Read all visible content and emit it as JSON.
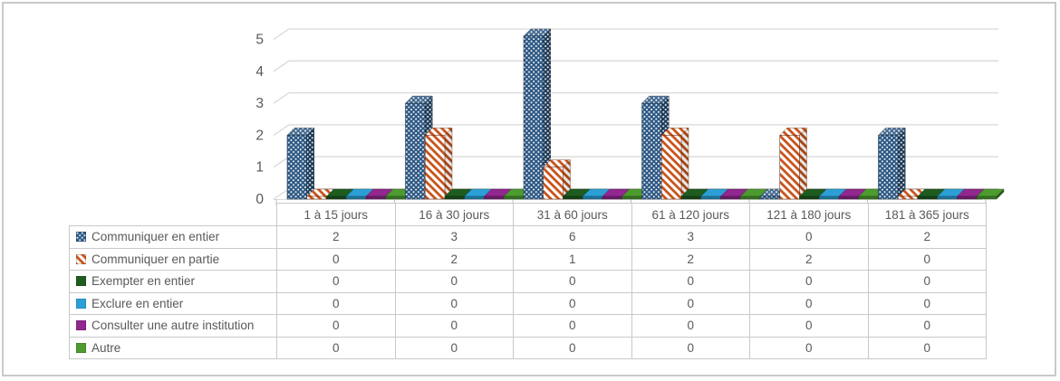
{
  "window": {
    "background": "#FFFFFF",
    "frame_border_color": "#C9C9C9"
  },
  "chart_data": {
    "type": "bar",
    "projection": "3d-column",
    "title": "",
    "xlabel": "",
    "ylabel": "",
    "categories": [
      "1 à 15 jours",
      "16 à 30 jours",
      "31 à 60 jours",
      "61 à 120 jours",
      "121 à 180 jours",
      "181 à 365 jours"
    ],
    "series": [
      {
        "name": "Communiquer en entier",
        "values": [
          2,
          3,
          6,
          3,
          0,
          2
        ],
        "color": "#2E5984",
        "pattern": "dots",
        "pattern_color": "#FFFFFF"
      },
      {
        "name": "Communiquer en partie",
        "values": [
          0,
          2,
          1,
          2,
          2,
          0
        ],
        "color": "#C8521A",
        "pattern": "diagonal-stripes",
        "pattern_color": "#FFFFFF"
      },
      {
        "name": "Exempter en entier",
        "values": [
          0,
          0,
          0,
          0,
          0,
          0
        ],
        "color": "#1E5C20",
        "pattern": "solid"
      },
      {
        "name": "Exclure en entier",
        "values": [
          0,
          0,
          0,
          0,
          0,
          0
        ],
        "color": "#2B9FD6",
        "pattern": "solid"
      },
      {
        "name": "Consulter une autre institution",
        "values": [
          0,
          0,
          0,
          0,
          0,
          0
        ],
        "color": "#92278F",
        "pattern": "solid"
      },
      {
        "name": "Autre",
        "values": [
          0,
          0,
          0,
          0,
          0,
          0
        ],
        "color": "#4D9B2F",
        "pattern": "solid"
      }
    ],
    "y_ticks": [
      0,
      1,
      2,
      3,
      4,
      5
    ],
    "ylim": [
      0,
      5.1
    ],
    "grid": true,
    "gridline_color": "#D9D9D9",
    "axis_text_color": "#595959",
    "legend_position": "data-table-left",
    "data_table_shown": true
  }
}
